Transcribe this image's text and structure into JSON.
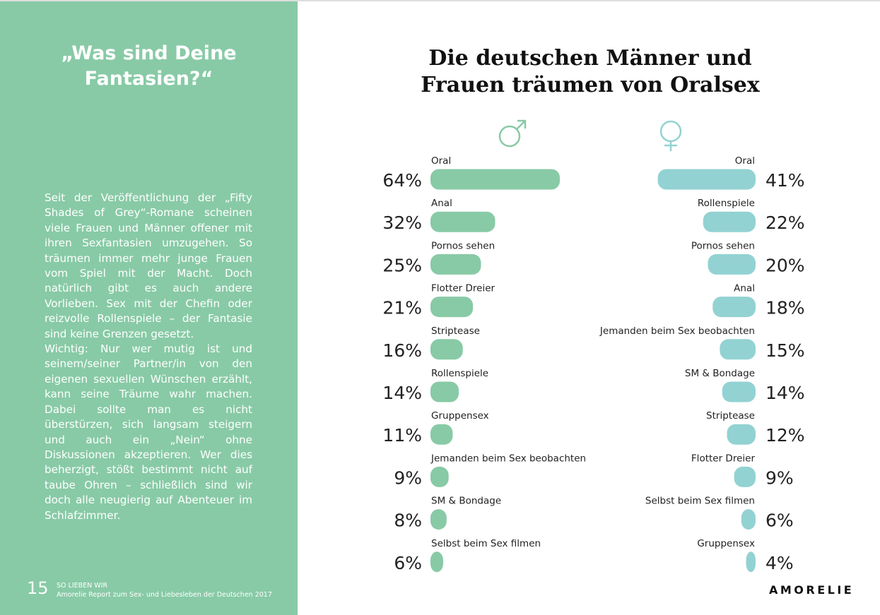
{
  "sidebar": {
    "title_lines": [
      "„Was sind Deine",
      "Fantasien?“"
    ],
    "paragraphs": [
      "Seit der Veröffentlichung der „Fifty Shades of Grey“-Romane scheinen viele Frauen und Männer offener mit ihren Sexfantasien umzugehen. So träumen immer mehr junge Frauen vom Spiel mit der Macht. Doch natürlich gibt es auch andere Vorlieben. Sex mit der Chefin oder reizvolle Rollenspiele – der Fantasie sind keine Grenzen gesetzt.",
      "Wichtig: Nur wer mutig ist und seinem/seiner Partner/in von den eigenen sexuellen Wünschen erzählt, kann seine Träume wahr machen. Dabei sollte man es nicht überstürzen, sich langsam steigern und auch ein „Nein“ ohne Diskussionen akzeptieren. Wer dies beherzigt, stößt bestimmt nicht auf taube Ohren – schließlich sind wir doch alle neugierig auf Abenteuer im Schlafzimmer."
    ]
  },
  "footer": {
    "page_number": "15",
    "line1": "SO LIEBEN WIR",
    "line2": "Amorelie Report zum Sex- und Liebesleben der Deutschen 2017"
  },
  "brand": "AMORELIE",
  "chart_data": {
    "type": "bar",
    "title_lines": [
      "Die deutschen Männer und",
      "Frauen träumen von Oralsex"
    ],
    "unit": "%",
    "series": [
      {
        "icon": "male-symbol-icon",
        "color": "#88caa6",
        "categories": [
          "Oral",
          "Anal",
          "Pornos sehen",
          "Flotter Dreier",
          "Striptease",
          "Rollenspiele",
          "Gruppensex",
          "Jemanden beim Sex beobachten",
          "SM & Bondage",
          "Selbst beim Sex filmen"
        ],
        "values": [
          64,
          32,
          25,
          21,
          16,
          14,
          11,
          9,
          8,
          6
        ]
      },
      {
        "icon": "female-symbol-icon",
        "color": "#93d2d2",
        "categories": [
          "Oral",
          "Rollenspiele",
          "Pornos sehen",
          "Anal",
          "Jemanden beim Sex beobachten",
          "SM & Bondage",
          "Striptease",
          "Flotter Dreier",
          "Selbst beim Sex filmen",
          "Gruppensex"
        ],
        "values": [
          41,
          22,
          20,
          18,
          15,
          14,
          12,
          9,
          6,
          4
        ]
      }
    ]
  }
}
